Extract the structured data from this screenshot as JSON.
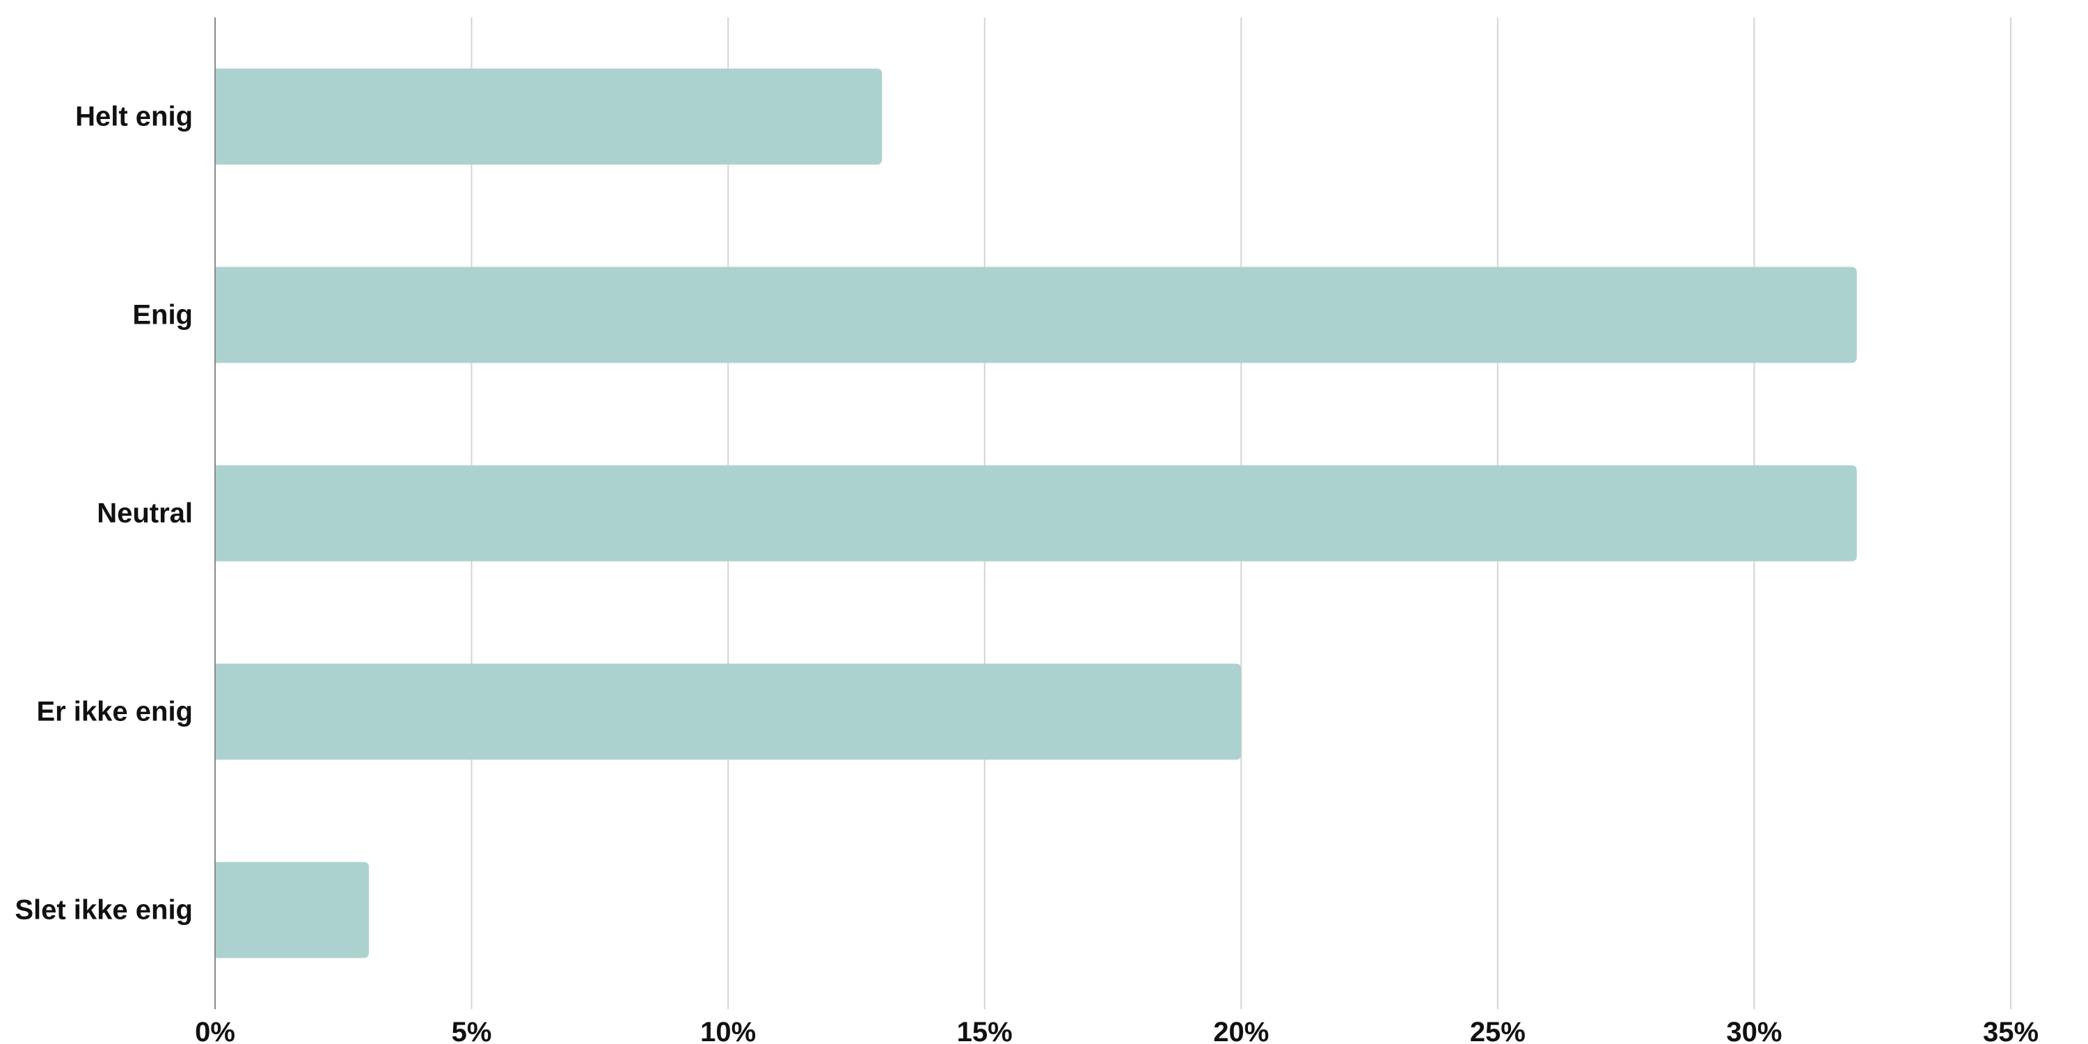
{
  "chart_data": {
    "type": "bar",
    "orientation": "horizontal",
    "title": "",
    "xlabel": "",
    "ylabel": "",
    "categories": [
      "Helt enig",
      "Enig",
      "Neutral",
      "Er ikke enig",
      "Slet ikke enig"
    ],
    "values": [
      13,
      32,
      32,
      20,
      3
    ],
    "unit": "%",
    "xlim": [
      0,
      35
    ],
    "ticks": [
      0,
      5,
      10,
      15,
      20,
      25,
      30,
      35
    ],
    "tick_labels": [
      "0%",
      "5%",
      "10%",
      "15%",
      "20%",
      "25%",
      "30%",
      "35%"
    ],
    "grid": "vertical",
    "legend": "none",
    "bar_color": "#acd2cf",
    "grid_color": "#d4d4d4",
    "axis_color": "#8a8a8a"
  }
}
